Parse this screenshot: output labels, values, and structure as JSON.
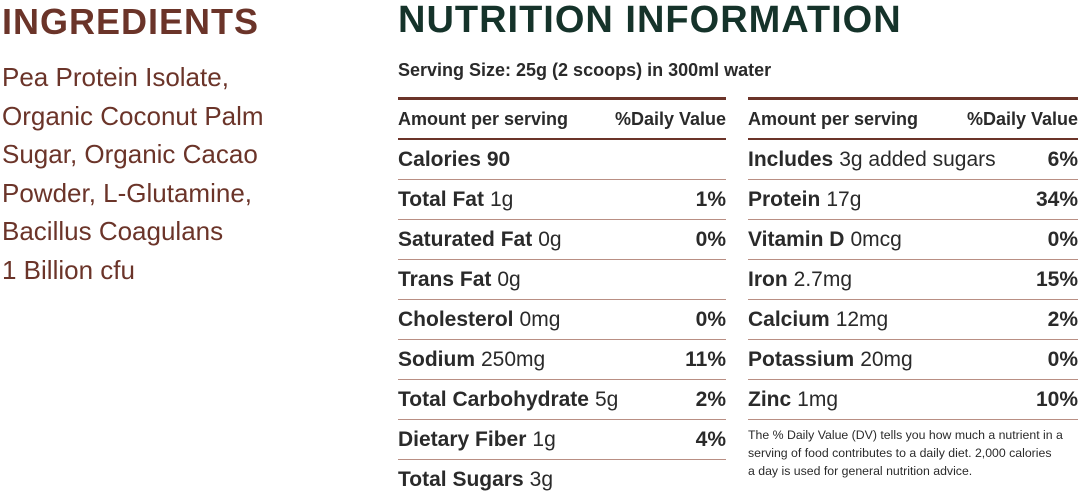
{
  "ingredients": {
    "title": "INGREDIENTS",
    "lines": [
      "Pea Protein Isolate,",
      "Organic Coconut Palm",
      "Sugar, Organic Cacao",
      "Powder, L-Glutamine,",
      "Bacillus Coagulans",
      "1 Billion cfu"
    ]
  },
  "nutrition": {
    "title": "NUTRITION INFORMATION",
    "serving": "Serving Size: 25g  (2 scoops) in 300ml water",
    "left": {
      "header_amount": "Amount per serving",
      "header_dv": "%Daily Value",
      "rows": [
        {
          "name": "Calories",
          "amount": "90",
          "dv": ""
        },
        {
          "name": "Total Fat",
          "amount": "1g",
          "dv": "1%"
        },
        {
          "name": "Saturated Fat",
          "amount": "0g",
          "dv": "0%"
        },
        {
          "name": "Trans Fat",
          "amount": "0g",
          "dv": ""
        },
        {
          "name": "Cholesterol",
          "amount": "0mg",
          "dv": "0%"
        },
        {
          "name": "Sodium",
          "amount": "250mg",
          "dv": "11%"
        },
        {
          "name": "Total Carbohydrate",
          "amount": "5g",
          "dv": "2%"
        },
        {
          "name": "Dietary Fiber",
          "amount": "1g",
          "dv": "4%"
        },
        {
          "name": "Total Sugars",
          "amount": "3g",
          "dv": ""
        }
      ]
    },
    "right": {
      "header_amount": "Amount per serving",
      "header_dv": "%Daily Value",
      "rows": [
        {
          "name": "Includes",
          "amount": "3g added sugars",
          "dv": "6%"
        },
        {
          "name": "Protein",
          "amount": "17g",
          "dv": "34%"
        },
        {
          "name": "Vitamin D",
          "amount": "0mcg",
          "dv": "0%"
        },
        {
          "name": "Iron",
          "amount": "2.7mg",
          "dv": "15%"
        },
        {
          "name": "Calcium",
          "amount": "12mg",
          "dv": "2%"
        },
        {
          "name": "Potassium",
          "amount": "20mg",
          "dv": "0%"
        },
        {
          "name": "Zinc",
          "amount": "1mg",
          "dv": "10%"
        }
      ],
      "footnote_lines": [
        "The % Daily Value (DV) tells you how much a nutrient in a",
        "serving of food contributes to a daily diet. 2,000 calories",
        "a day is used for general nutrition advice."
      ]
    }
  }
}
